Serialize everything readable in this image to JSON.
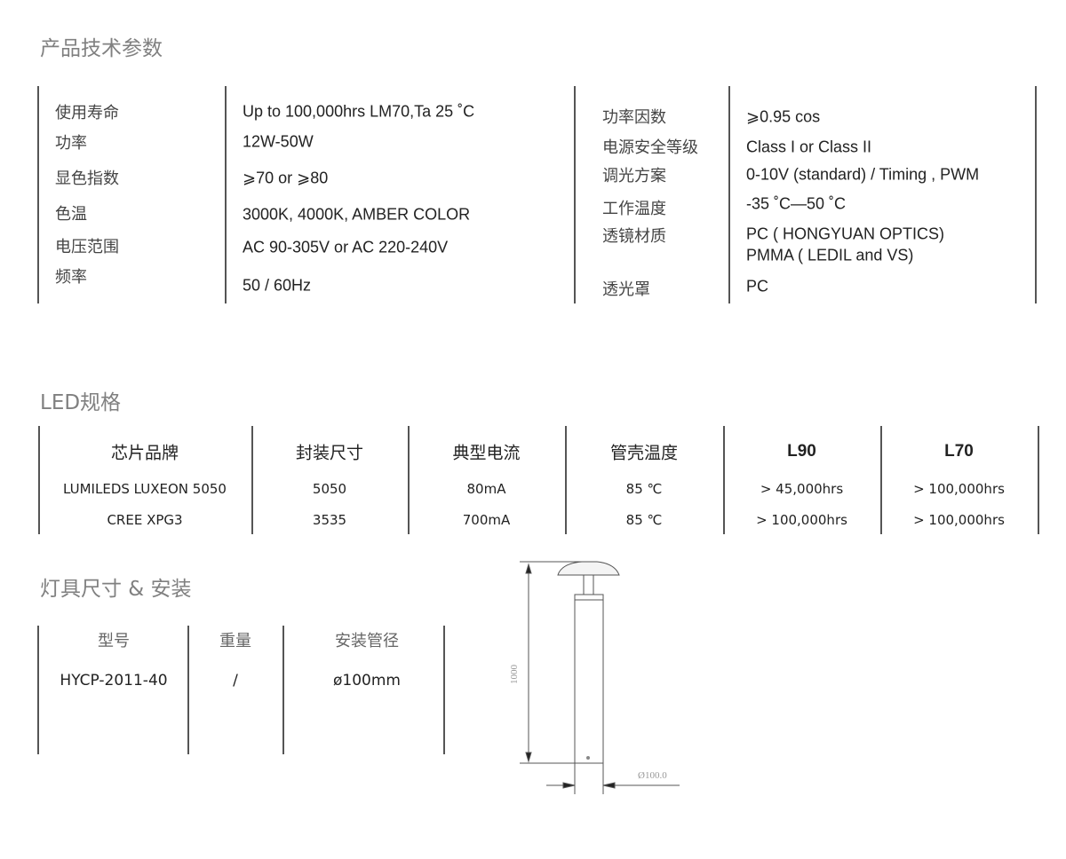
{
  "specs": {
    "title": "产品技术参数",
    "left": [
      {
        "label": "使用寿命",
        "value": "Up to 100,000hrs LM70,Ta 25 ˚C"
      },
      {
        "label": "功率",
        "value": "12W-50W"
      },
      {
        "label": "显色指数",
        "value": "⩾70 or ⩾80"
      },
      {
        "label": "色温",
        "value": "3000K, 4000K, AMBER COLOR"
      },
      {
        "label": "电压范围",
        "value": "AC 90-305V or AC 220-240V"
      },
      {
        "label": "频率",
        "value": "50 / 60Hz"
      }
    ],
    "right": [
      {
        "label": "功率因数",
        "value": "⩾0.95 cos"
      },
      {
        "label": "电源安全等级",
        "value": "Class I or Class II"
      },
      {
        "label": "调光方案",
        "value": "0-10V (standard) / Timing , PWM"
      },
      {
        "label": "工作温度",
        "value": "-35 ˚C—50 ˚C"
      },
      {
        "label": "透镜材质",
        "value": "PC ( HONGYUAN OPTICS)",
        "value2": "PMMA ( LEDIL and VS)"
      },
      {
        "label": "透光罩",
        "value": "PC"
      }
    ]
  },
  "led": {
    "title": "LED规格",
    "headers": [
      "芯片品牌",
      "封装尺寸",
      "典型电流",
      "管壳温度",
      "L90",
      "L70"
    ],
    "rows": [
      [
        "LUMILEDS LUXEON 5050",
        "5050",
        "80mA",
        "85 ℃",
        "> 45,000hrs",
        "> 100,000hrs"
      ],
      [
        "CREE XPG3",
        "3535",
        "700mA",
        "85 ℃",
        "> 100,000hrs",
        "> 100,000hrs"
      ]
    ]
  },
  "install": {
    "title": "灯具尺寸 & 安装",
    "headers": [
      "型号",
      "重量",
      "安装管径"
    ],
    "values": [
      "HYCP-2011-40",
      "/",
      "ø100mm"
    ]
  },
  "drawing": {
    "height_label": "1000",
    "diameter_label": "Ø100.0"
  }
}
